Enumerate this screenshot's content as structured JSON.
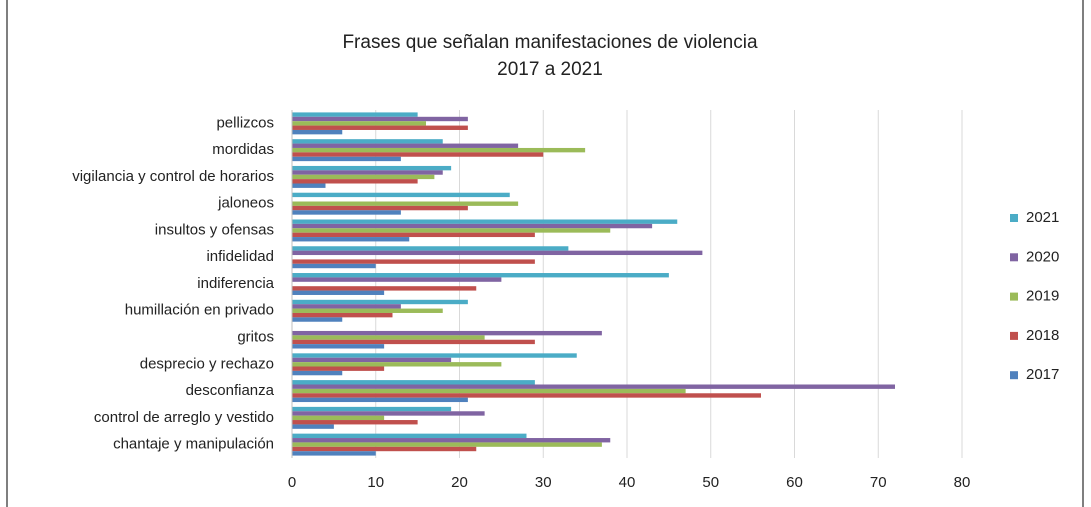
{
  "chart_data": {
    "type": "hbar",
    "title": "Frases que señalan manifestaciones de violencia",
    "subtitle": "2017 a 2021",
    "categories": [
      "pellizcos",
      "mordidas",
      "vigilancia y control de horarios",
      "jaloneos",
      "insultos y ofensas",
      "infidelidad",
      "indiferencia",
      "humillación en privado",
      "gritos",
      "desprecio y rechazo",
      "desconfianza",
      "control de arreglo y vestido",
      "chantaje y manipulación"
    ],
    "series": [
      {
        "name": "2021",
        "color": "#4bacc6",
        "values": [
          15,
          18,
          19,
          26,
          46,
          33,
          45,
          21,
          0,
          34,
          29,
          19,
          28
        ]
      },
      {
        "name": "2020",
        "color": "#8064a2",
        "values": [
          21,
          27,
          18,
          0,
          43,
          49,
          25,
          13,
          37,
          19,
          72,
          23,
          38
        ]
      },
      {
        "name": "2019",
        "color": "#9bbb59",
        "values": [
          16,
          35,
          17,
          27,
          38,
          0,
          0,
          18,
          23,
          25,
          47,
          11,
          37
        ]
      },
      {
        "name": "2018",
        "color": "#c0504d",
        "values": [
          21,
          30,
          15,
          21,
          29,
          29,
          22,
          12,
          29,
          11,
          56,
          15,
          22
        ]
      },
      {
        "name": "2017",
        "color": "#4f81bd",
        "values": [
          6,
          13,
          4,
          13,
          14,
          10,
          11,
          6,
          11,
          6,
          21,
          5,
          10
        ]
      }
    ],
    "xlim": [
      0,
      80
    ],
    "xticks": [
      0,
      10,
      20,
      30,
      40,
      50,
      60,
      70,
      80
    ],
    "grid": true,
    "legend": "right"
  }
}
